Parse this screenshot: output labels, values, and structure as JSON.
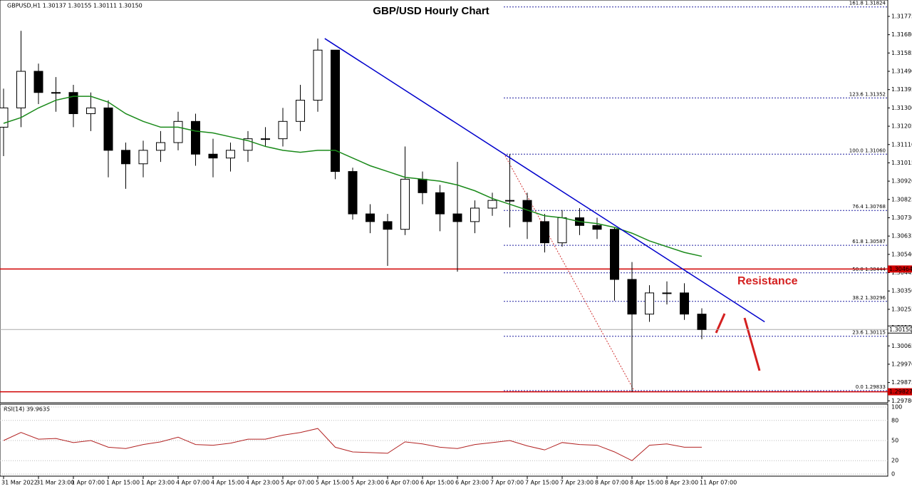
{
  "chart_data": {
    "type": "candlestick",
    "header": "GBPUSD,H1  1.30137 1.30155 1.30111 1.30150",
    "title": "GBP/USD Hourly Chart",
    "annotation": "Resistance",
    "categories": [
      "31 Mar 2022",
      null,
      "31 Mar 23:00",
      null,
      "1 Apr 07:00",
      null,
      "1 Apr 15:00",
      null,
      "1 Apr 23:00",
      null,
      "4 Apr 07:00",
      null,
      "4 Apr 15:00",
      null,
      "4 Apr 23:00",
      null,
      "5 Apr 07:00",
      null,
      "5 Apr 15:00",
      null,
      "5 Apr 23:00",
      null,
      "6 Apr 07:00",
      null,
      "6 Apr 15:00",
      null,
      "6 Apr 23:00",
      null,
      "7 Apr 07:00",
      null,
      "7 Apr 15:00",
      null,
      "7 Apr 23:00",
      null,
      "8 Apr 07:00",
      null,
      "8 Apr 15:00",
      null,
      "8 Apr 23:00",
      null,
      "11 Apr 07:00"
    ],
    "open": [
      1.312,
      1.313,
      1.3149,
      1.3138,
      1.3138,
      1.3127,
      1.313,
      1.3108,
      1.3101,
      1.3108,
      1.3112,
      1.3123,
      1.3106,
      1.3104,
      1.3108,
      1.3114,
      1.3114,
      1.3123,
      1.3134,
      1.316,
      1.3097,
      1.3075,
      1.3071,
      1.3067,
      1.3093,
      1.3086,
      1.3075,
      1.3071,
      1.3078,
      1.3082,
      1.3082,
      1.3071,
      1.306,
      1.3073,
      1.3069,
      1.3067,
      1.3041,
      1.3023,
      1.3034,
      1.3034,
      1.3023
    ],
    "high": [
      1.314,
      1.317,
      1.3153,
      1.3146,
      1.3142,
      1.3138,
      1.3134,
      1.3112,
      1.3113,
      1.3118,
      1.3128,
      1.3127,
      1.3114,
      1.3112,
      1.3118,
      1.312,
      1.313,
      1.3142,
      1.3166,
      1.316,
      1.3099,
      1.308,
      1.3075,
      1.311,
      1.3097,
      1.309,
      1.3102,
      1.3082,
      1.3086,
      1.3106,
      1.3086,
      1.3075,
      1.3077,
      1.3078,
      1.3073,
      1.3068,
      1.305,
      1.3038,
      1.304,
      1.3039,
      1.3026
    ],
    "low": [
      1.3105,
      1.312,
      1.3132,
      1.3128,
      1.312,
      1.3118,
      1.3094,
      1.3088,
      1.3094,
      1.3102,
      1.3108,
      1.31,
      1.3094,
      1.3097,
      1.3102,
      1.311,
      1.311,
      1.3118,
      1.3128,
      1.3093,
      1.3072,
      1.3065,
      1.3048,
      1.3064,
      1.308,
      1.3066,
      1.3045,
      1.3065,
      1.3074,
      1.3068,
      1.3062,
      1.3055,
      1.3058,
      1.3064,
      1.3062,
      1.303,
      1.29827,
      1.3019,
      1.3028,
      1.302,
      1.301
    ],
    "close": [
      1.313,
      1.3149,
      1.3138,
      1.3138,
      1.3127,
      1.313,
      1.3108,
      1.3101,
      1.3108,
      1.3112,
      1.3123,
      1.3106,
      1.3104,
      1.3108,
      1.3114,
      1.3114,
      1.3123,
      1.3134,
      1.316,
      1.3097,
      1.3075,
      1.3071,
      1.3067,
      1.3093,
      1.3086,
      1.3075,
      1.3071,
      1.3078,
      1.3082,
      1.3082,
      1.3071,
      1.306,
      1.3073,
      1.3069,
      1.3067,
      1.3041,
      1.3023,
      1.3034,
      1.3034,
      1.3023,
      1.3015
    ],
    "ma": {
      "color": "#1a8a1a",
      "values": [
        1.3122,
        1.3125,
        1.313,
        1.3134,
        1.3136,
        1.3136,
        1.3133,
        1.3127,
        1.3123,
        1.312,
        1.312,
        1.3118,
        1.3117,
        1.3115,
        1.3113,
        1.311,
        1.3108,
        1.3107,
        1.3108,
        1.3108,
        1.3104,
        1.31,
        1.3097,
        1.3094,
        1.3093,
        1.3092,
        1.309,
        1.3087,
        1.3083,
        1.308,
        1.3077,
        1.3074,
        1.3073,
        1.3071,
        1.307,
        1.3068,
        1.3065,
        1.3061,
        1.3058,
        1.3055,
        1.3053
      ]
    },
    "ylim": [
      1.2977,
      1.3186
    ],
    "yticks": [
      {
        "value": 1.31775,
        "label": "1.31775"
      },
      {
        "value": 1.3168,
        "label": "1.31680"
      },
      {
        "value": 1.31585,
        "label": "1.31585"
      },
      {
        "value": 1.3149,
        "label": "1.31490"
      },
      {
        "value": 1.31395,
        "label": "1.31395"
      },
      {
        "value": 1.313,
        "label": "1.31300"
      },
      {
        "value": 1.31205,
        "label": "1.31205"
      },
      {
        "value": 1.3111,
        "label": "1.31110"
      },
      {
        "value": 1.31015,
        "label": "1.31015"
      },
      {
        "value": 1.3092,
        "label": "1.30920"
      },
      {
        "value": 1.30825,
        "label": "1.30825"
      },
      {
        "value": 1.3073,
        "label": "1.30730"
      },
      {
        "value": 1.30635,
        "label": "1.30635"
      },
      {
        "value": 1.3054,
        "label": "1.30540"
      },
      {
        "value": 1.30445,
        "label": "1.30445"
      },
      {
        "value": 1.3035,
        "label": "1.30350"
      },
      {
        "value": 1.30255,
        "label": "1.30255"
      },
      {
        "value": 1.3016,
        "label": "1.30160"
      },
      {
        "value": 1.30065,
        "label": "1.30065"
      },
      {
        "value": 1.2997,
        "label": "1.29970"
      },
      {
        "value": 1.29875,
        "label": "1.29875"
      },
      {
        "value": 1.2978,
        "label": "1.29780"
      }
    ],
    "hlines": [
      {
        "value": 1.30464,
        "color": "#d00000"
      },
      {
        "value": 1.29827,
        "color": "#d00000"
      }
    ],
    "current_price": {
      "value": 1.3015,
      "label": "1.30150"
    },
    "fib_levels": [
      {
        "label": "161.8 1.31824",
        "value": 1.31824
      },
      {
        "label": "123.6 1.31352",
        "value": 1.31352
      },
      {
        "label": "100.0 1.31060",
        "value": 1.3106
      },
      {
        "label": "76.4 1.30768",
        "value": 1.30768
      },
      {
        "label": "61.8 1.30587",
        "value": 1.30587
      },
      {
        "label": "50.0 1.30444",
        "value": 1.30444
      },
      {
        "label": "38.2 1.30296",
        "value": 1.30296
      },
      {
        "label": "23.6 1.30115",
        "value": 1.30115
      },
      {
        "label": "0.0 1.29833",
        "value": 1.29833
      }
    ],
    "trendline": {
      "color": "#0000cc",
      "x": [
        18.4,
        43.6
      ],
      "y": [
        1.3166,
        1.3019
      ]
    },
    "rsi": {
      "label": "RSI(14) 39.9635",
      "color": "#b22222",
      "values": [
        50,
        62,
        52,
        53,
        47,
        50,
        40,
        38,
        44,
        48,
        55,
        44,
        43,
        46,
        52,
        52,
        58,
        62,
        68,
        40,
        33,
        32,
        31,
        48,
        45,
        40,
        38,
        44,
        47,
        50,
        42,
        36,
        47,
        44,
        43,
        33,
        20,
        43,
        45,
        40,
        39.9635
      ],
      "ylim": [
        0,
        100
      ],
      "yticks": [
        100,
        80,
        50,
        20,
        0
      ]
    }
  }
}
